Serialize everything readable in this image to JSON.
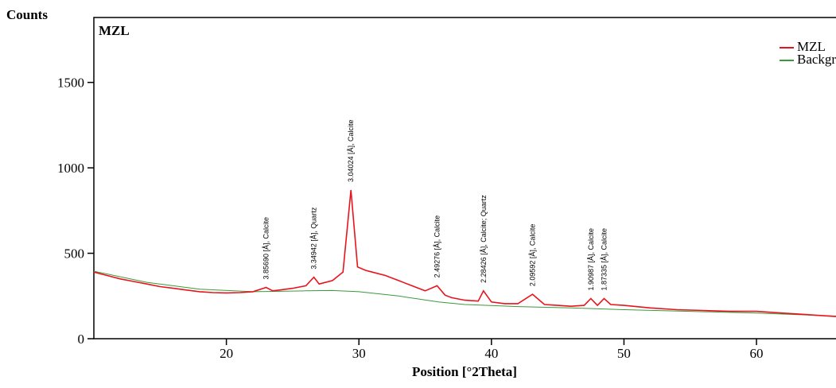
{
  "chart_data": {
    "type": "line",
    "title": "MZL",
    "y_label": "Counts",
    "x_label": "Position [°2Theta]",
    "xlim": [
      10,
      66
    ],
    "ylim": [
      0,
      1880
    ],
    "xticks": [
      20,
      30,
      40,
      50,
      60
    ],
    "yticks": [
      0,
      500,
      1000,
      1500
    ],
    "series": [
      {
        "name": "MZL",
        "color": "#e8141c",
        "x": [
          10,
          11,
          12,
          13,
          14,
          15,
          16,
          17,
          18,
          19,
          20,
          21,
          22,
          23,
          23.5,
          24,
          25,
          26,
          26.6,
          27,
          28,
          28.8,
          29.4,
          29.9,
          30.5,
          31,
          32,
          33,
          34,
          35,
          35.9,
          36.5,
          37,
          38,
          39,
          39.4,
          40,
          41,
          42,
          43.1,
          44,
          45,
          46,
          47,
          47.5,
          48,
          48.5,
          49,
          50,
          52,
          54,
          56,
          58,
          60,
          62,
          64,
          66
        ],
        "values": [
          390,
          370,
          350,
          335,
          320,
          305,
          295,
          285,
          275,
          270,
          268,
          270,
          275,
          300,
          280,
          285,
          295,
          310,
          360,
          320,
          340,
          390,
          870,
          420,
          400,
          390,
          370,
          340,
          310,
          280,
          310,
          255,
          240,
          225,
          220,
          280,
          215,
          205,
          205,
          260,
          200,
          195,
          190,
          195,
          235,
          195,
          235,
          200,
          195,
          180,
          170,
          165,
          160,
          160,
          150,
          140,
          130
        ]
      },
      {
        "name": "Background",
        "color": "#3a9a3a",
        "x": [
          10,
          14,
          18,
          22,
          26,
          28,
          30,
          33,
          36,
          38,
          42,
          46,
          50,
          55,
          60,
          66
        ],
        "values": [
          395,
          330,
          290,
          275,
          280,
          282,
          275,
          250,
          215,
          200,
          188,
          180,
          170,
          160,
          150,
          132
        ]
      }
    ],
    "annotations": [
      {
        "x": 23,
        "y": 300,
        "text": "3.85690 [Å], Calcite"
      },
      {
        "x": 26.6,
        "y": 360,
        "text": "3.34942 [Å], Quartz"
      },
      {
        "x": 29.4,
        "y": 870,
        "text": "3.04024 [Å], Calcite"
      },
      {
        "x": 35.9,
        "y": 310,
        "text": "2.49276 [Å], Calcite"
      },
      {
        "x": 39.4,
        "y": 280,
        "text": "2.28426 [Å], Calcite; Quartz"
      },
      {
        "x": 43.1,
        "y": 260,
        "text": "2.09592 [Å], Calcite"
      },
      {
        "x": 47.5,
        "y": 235,
        "text": "1.90987 [Å], Calcite"
      },
      {
        "x": 48.5,
        "y": 235,
        "text": "1.87335 [Å], Calcite"
      }
    ]
  }
}
